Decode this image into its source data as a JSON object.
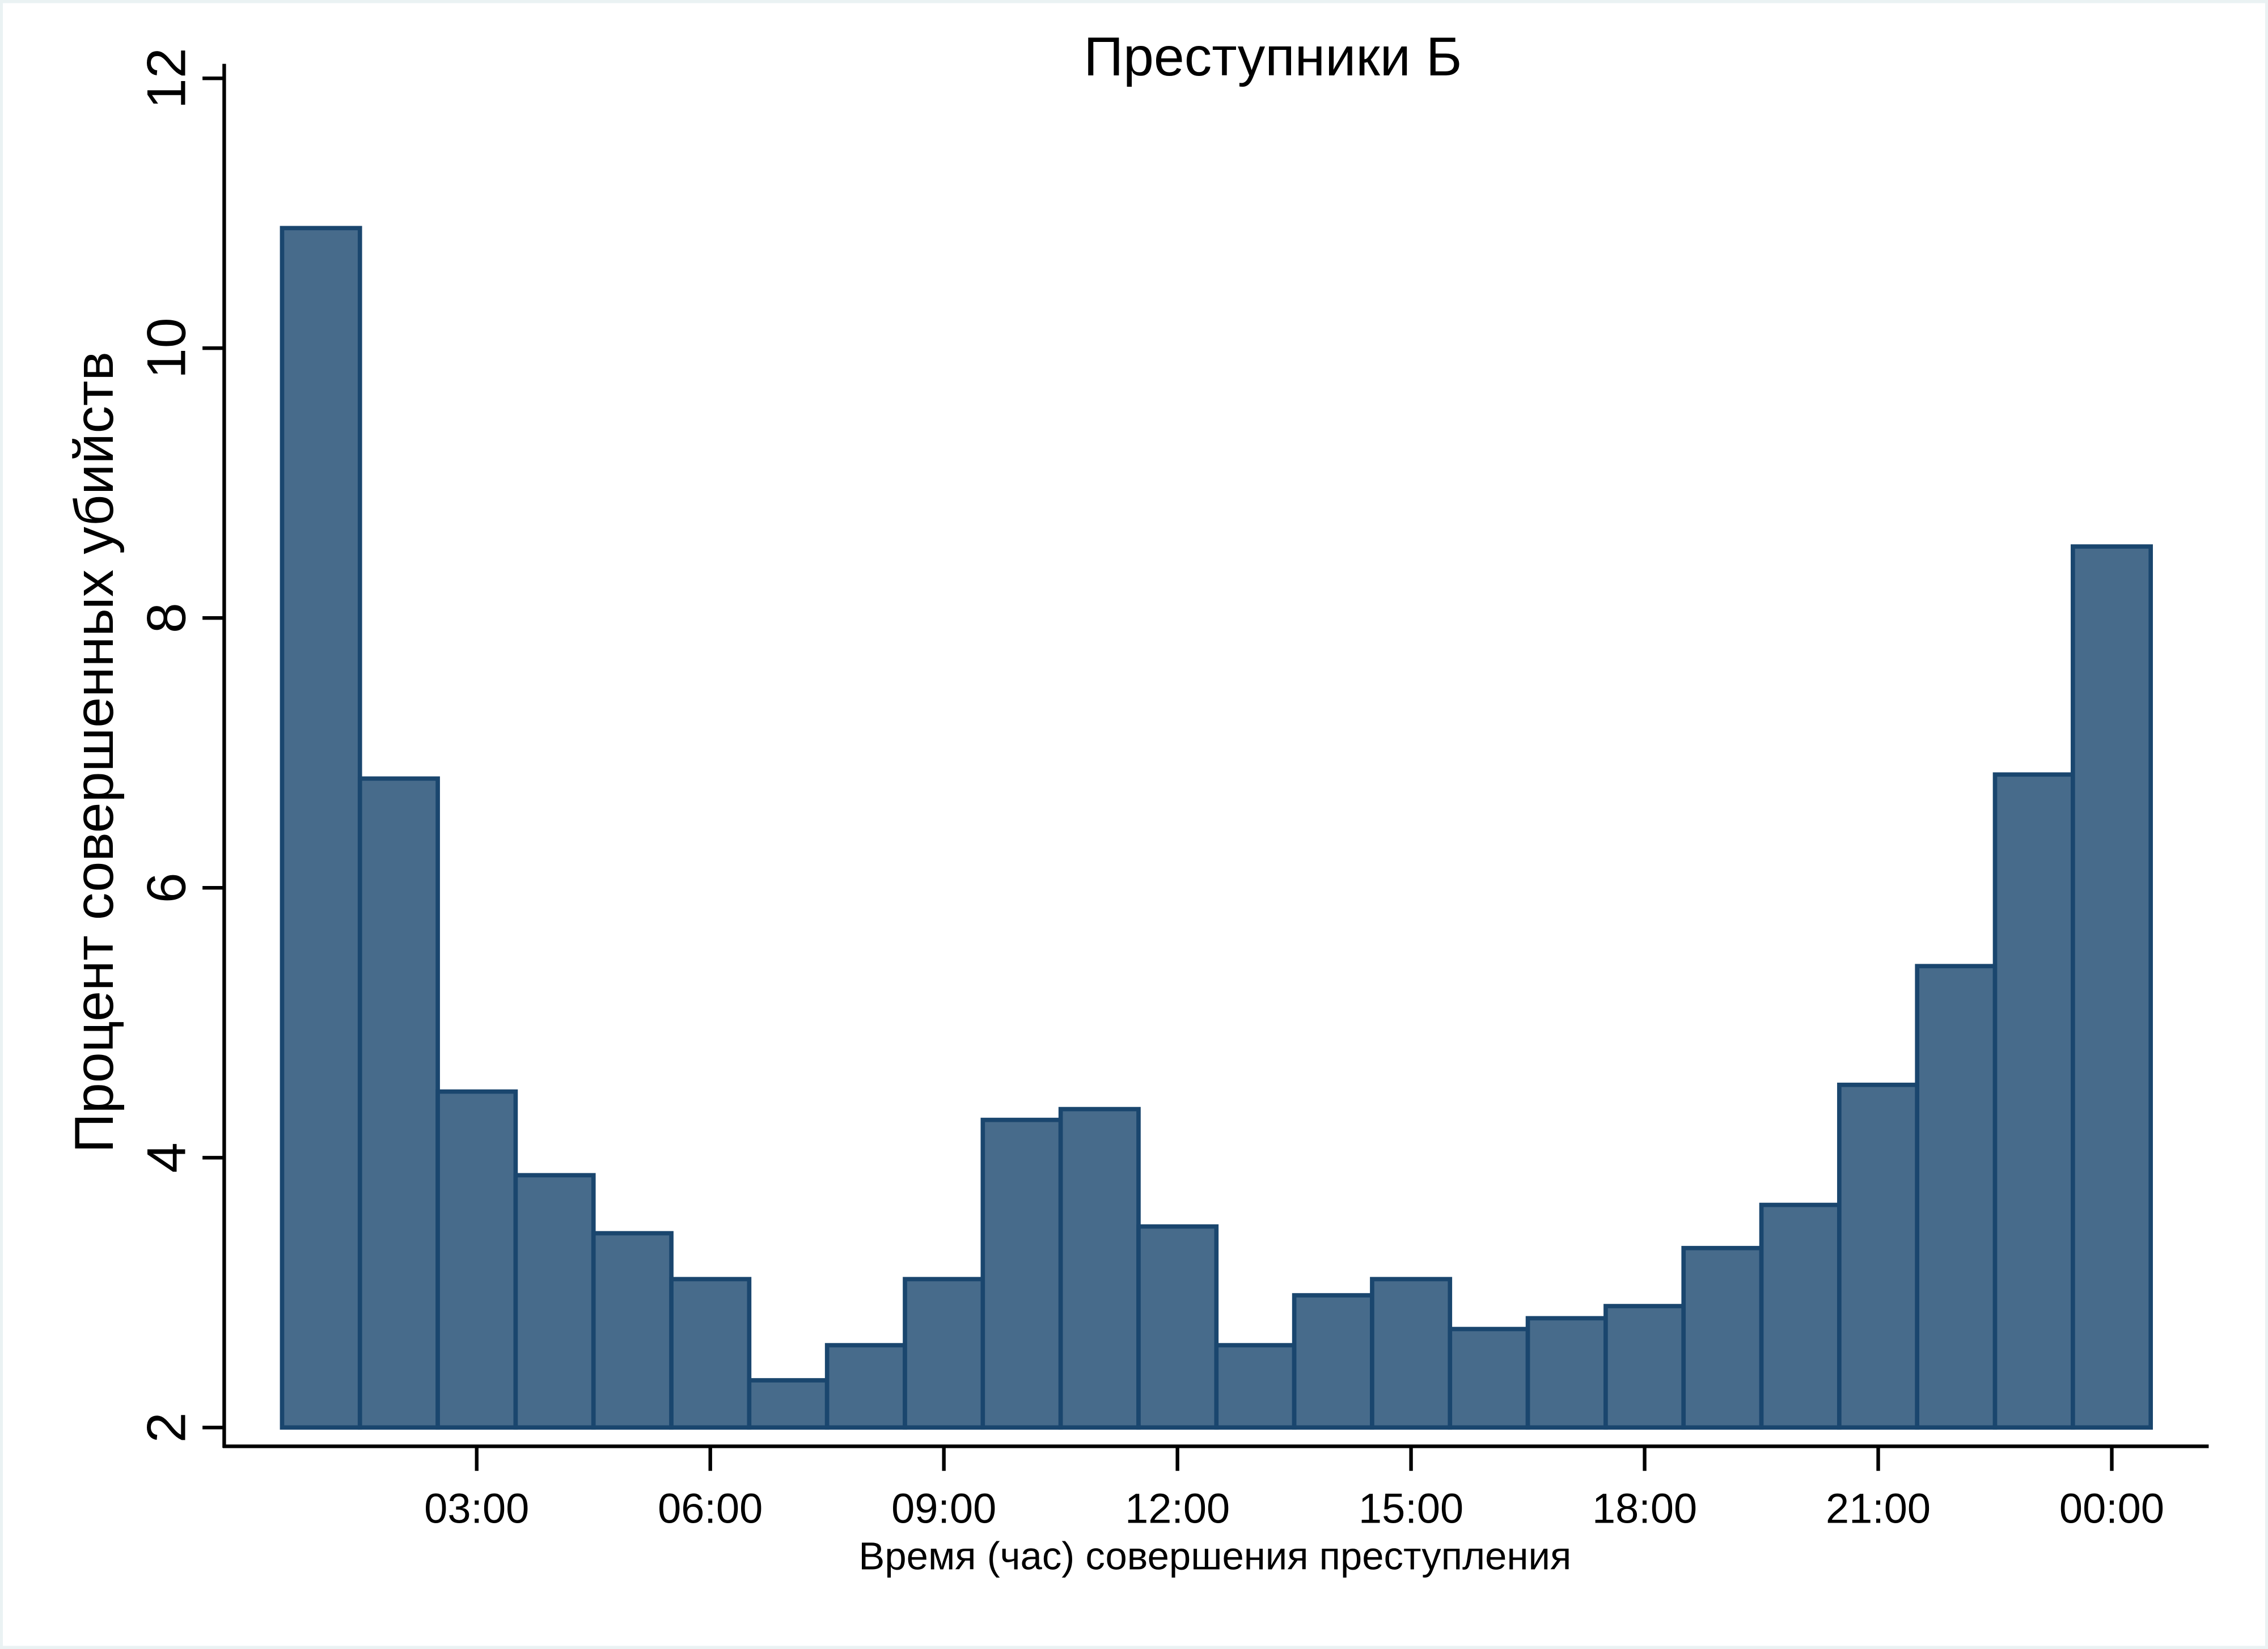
{
  "chart_data": {
    "type": "bar",
    "title": "Преступники Б",
    "xlabel": "Время (час) совершения преступления",
    "ylabel": "Процент совершенных убийств",
    "ylim": [
      2,
      12
    ],
    "yticks": [
      2,
      4,
      6,
      8,
      10,
      12
    ],
    "x": [
      1,
      2,
      3,
      4,
      5,
      6,
      7,
      8,
      9,
      10,
      11,
      12,
      13,
      14,
      15,
      16,
      17,
      18,
      19,
      20,
      21,
      22,
      23,
      24
    ],
    "xticks": [
      {
        "hour": 3,
        "label": "03:00"
      },
      {
        "hour": 6,
        "label": "06:00"
      },
      {
        "hour": 9,
        "label": "09:00"
      },
      {
        "hour": 12,
        "label": "12:00"
      },
      {
        "hour": 15,
        "label": "15:00"
      },
      {
        "hour": 18,
        "label": "18:00"
      },
      {
        "hour": 21,
        "label": "21:00"
      },
      {
        "hour": 24,
        "label": "00:00"
      }
    ],
    "values": [
      10.89,
      6.81,
      4.49,
      3.87,
      3.44,
      3.1,
      2.35,
      2.61,
      3.1,
      4.28,
      4.36,
      3.49,
      2.61,
      2.98,
      3.1,
      2.73,
      2.81,
      2.9,
      3.33,
      3.65,
      4.54,
      5.42,
      6.84,
      8.53
    ],
    "grid": false,
    "colors": {
      "fill": "#476b8b",
      "stroke": "#1a466e"
    }
  }
}
